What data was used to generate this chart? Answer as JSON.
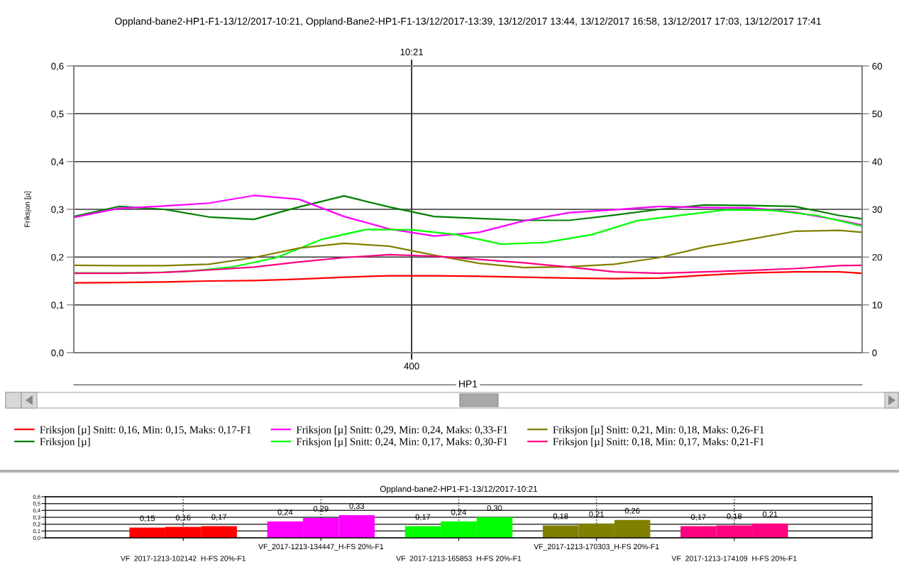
{
  "chart_data": [
    {
      "type": "line",
      "title": "Oppland-bane2-HP1-F1-13/12/2017-10:21, Oppland-Bane2-HP1-F1-13/12/2017-13:39, 13/12/2017 13:44, 13/12/2017 16:58, 13/12/2017 17:03, 13/12/2017 17:41",
      "xlabel": "HP1",
      "ylabel": "Friksjon [µ]",
      "categories": [
        null,
        null,
        null,
        null,
        null,
        null,
        null,
        null,
        null,
        null,
        null,
        null,
        null,
        null,
        null,
        "400",
        null,
        null,
        null,
        null,
        null,
        null,
        null,
        null,
        null,
        null,
        null,
        null,
        null,
        null,
        null,
        null,
        null,
        null,
        null,
        null
      ],
      "ylim": [
        0,
        0.6
      ],
      "yticks": [
        {
          "value": 0,
          "label": "0,0"
        },
        {
          "value": 0.1,
          "label": "0,1"
        },
        {
          "value": 0.2,
          "label": "0,2"
        },
        {
          "value": 0.3,
          "label": "0,3"
        },
        {
          "value": 0.4,
          "label": "0,4"
        },
        {
          "value": 0.5,
          "label": "0,5"
        },
        {
          "value": 0.6,
          "label": "0,6"
        }
      ],
      "y2lim": [
        0,
        60
      ],
      "y2ticks": [
        0,
        10,
        20,
        30,
        40,
        50,
        60
      ],
      "grid": true,
      "legend": "bottom",
      "annotations": [
        {
          "text": "10:21",
          "x": "400"
        }
      ],
      "series": [
        {
          "name": "Friksjon [µ] Snitt: 0,16, Min: 0,15, Maks: 0,17-F1",
          "color": "#ff0000",
          "values": [
            0.146,
            null,
            0.147,
            null,
            0.148,
            null,
            0.15,
            null,
            0.151,
            null,
            0.154,
            null,
            0.158,
            null,
            0.161,
            null,
            0.161,
            null,
            0.16,
            null,
            0.158,
            null,
            0.156,
            null,
            0.155,
            null,
            0.156,
            null,
            0.162,
            null,
            0.167,
            null,
            0.169,
            null,
            0.169,
            0.166
          ]
        },
        {
          "name": "Friksjon [µ]",
          "color": "#008000",
          "values": [
            0.285,
            null,
            0.306,
            null,
            0.3,
            null,
            0.284,
            null,
            0.279,
            null,
            0.305,
            null,
            0.328,
            null,
            0.305,
            null,
            0.285,
            null,
            0.281,
            null,
            0.277,
            null,
            0.277,
            null,
            0.288,
            null,
            0.3,
            null,
            0.309,
            null,
            0.308,
            null,
            0.306,
            null,
            0.287,
            0.28
          ]
        },
        {
          "name": "Friksjon [µ] Snitt: 0,29, Min: 0,24, Maks: 0,33-F1",
          "color": "#ff00ff",
          "values": [
            0.283,
            null,
            0.302,
            null,
            0.307,
            null,
            0.313,
            null,
            0.329,
            null,
            0.321,
            null,
            0.285,
            null,
            0.259,
            null,
            0.244,
            null,
            0.252,
            null,
            0.276,
            null,
            0.293,
            null,
            0.299,
            null,
            0.306,
            null,
            0.304,
            null,
            0.303,
            null,
            0.294,
            null,
            0.277,
            0.267
          ]
        },
        {
          "name": "Friksjon [µ] Snitt: 0,24, Min: 0,17, Maks: 0,30-F1",
          "color": "#00ff00",
          "values": [
            0.167,
            0.167,
            null,
            0.167,
            null,
            0.17,
            null,
            0.179,
            null,
            0.199,
            null,
            0.237,
            null,
            0.258,
            null,
            0.257,
            null,
            0.247,
            null,
            0.227,
            null,
            0.231,
            null,
            0.247,
            null,
            0.276,
            null,
            0.288,
            null,
            0.299,
            null,
            0.298,
            null,
            0.287,
            null,
            0.265
          ]
        },
        {
          "name": "Friksjon [µ] Snitt: 0,21, Min: 0,18, Maks: 0,26-F1",
          "color": "#808000",
          "values": [
            0.183,
            null,
            0.182,
            null,
            0.182,
            null,
            0.185,
            null,
            0.199,
            null,
            0.219,
            null,
            0.229,
            null,
            0.223,
            null,
            0.204,
            null,
            0.187,
            null,
            0.178,
            null,
            0.18,
            null,
            0.185,
            null,
            0.199,
            null,
            0.221,
            null,
            0.237,
            null,
            0.254,
            null,
            0.256,
            0.252
          ]
        },
        {
          "name": "Friksjon [µ] Snitt: 0,18, Min: 0,17, Maks: 0,21-F1",
          "color": "#ff0080",
          "values": [
            0.166,
            null,
            0.166,
            null,
            0.168,
            null,
            0.173,
            null,
            0.179,
            null,
            0.19,
            null,
            0.199,
            null,
            0.205,
            null,
            0.202,
            null,
            0.195,
            null,
            0.188,
            null,
            0.179,
            null,
            0.169,
            null,
            0.166,
            null,
            0.169,
            null,
            0.172,
            null,
            0.176,
            null,
            0.182,
            0.183
          ]
        }
      ]
    },
    {
      "type": "bar",
      "title": "Oppland-bane2-HP1-F1-13/12/2017-10:21",
      "categories": [
        "VF_2017-1213-102142_H-FS 20%-F1",
        "VF_2017-1213-134447_H-FS 20%-F1",
        "VF_2017-1213-165853_H-FS 20%-F1",
        "VF_2017-1213-170303_H-FS 20%-F1",
        "VF_2017-1213-174109_H-FS 20%-F1"
      ],
      "ylim": [
        0,
        0.6
      ],
      "yticks": [
        {
          "value": 0,
          "label": "0,0"
        },
        {
          "value": 0.1,
          "label": "0,1"
        },
        {
          "value": 0.2,
          "label": "0,2"
        },
        {
          "value": 0.3,
          "label": "0,3"
        },
        {
          "value": 0.4,
          "label": "0,4"
        },
        {
          "value": 0.5,
          "label": "0,5"
        },
        {
          "value": 0.6,
          "label": "0,6"
        }
      ],
      "grid": true,
      "series": [
        {
          "colors": [
            "#ff0000",
            "#ff00ff",
            "#00ff00",
            "#808000",
            "#ff0080"
          ],
          "values": [
            0.15,
            0.24,
            0.17,
            0.18,
            0.17
          ],
          "value_labels": [
            "0,15",
            "0,24",
            "0,17",
            "0,18",
            "0,17"
          ]
        },
        {
          "colors": [
            "#ff0000",
            "#ff00ff",
            "#00ff00",
            "#808000",
            "#ff0080"
          ],
          "values": [
            0.16,
            0.29,
            0.24,
            0.21,
            0.18
          ],
          "value_labels": [
            "0,16",
            "0,29",
            "0,24",
            "0,21",
            "0,18"
          ]
        },
        {
          "colors": [
            "#ff0000",
            "#ff00ff",
            "#00ff00",
            "#808000",
            "#ff0080"
          ],
          "values": [
            0.17,
            0.33,
            0.3,
            0.26,
            0.21
          ],
          "value_labels": [
            "0,17",
            "0,33",
            "0,30",
            "0,26",
            "0,21"
          ]
        }
      ]
    }
  ]
}
